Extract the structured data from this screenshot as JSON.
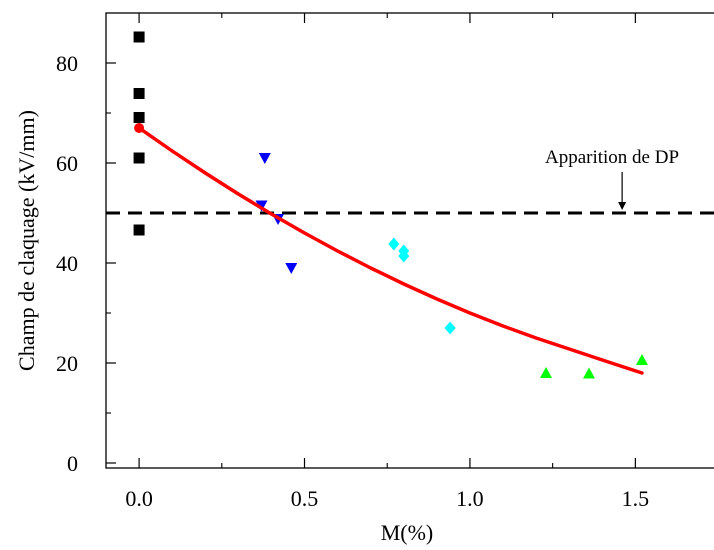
{
  "chart_data": {
    "type": "scatter",
    "title": "",
    "xlabel": "M(%)",
    "ylabel": "Champ de claquage (kV/mm)",
    "xlim": [
      -0.1,
      1.78
    ],
    "ylim": [
      -1,
      90
    ],
    "x_ticks": [
      0.0,
      0.5,
      1.0,
      1.5
    ],
    "x_tick_labels": [
      "0.0",
      "0.5",
      "1.0",
      "1.5"
    ],
    "y_ticks": [
      0,
      20,
      40,
      60,
      80
    ],
    "y_tick_labels": [
      "0",
      "20",
      "40",
      "60",
      "80"
    ],
    "grid": false,
    "legend": "none",
    "series": [
      {
        "marker": "square",
        "color": "#000000",
        "points": [
          [
            0,
            85.2
          ],
          [
            0,
            73.9
          ],
          [
            0,
            69.1
          ],
          [
            0,
            61.0
          ],
          [
            0,
            46.6
          ]
        ]
      },
      {
        "marker": "triangle-down",
        "color": "#0000ff",
        "points": [
          [
            0.38,
            61.0
          ],
          [
            0.37,
            51.5
          ],
          [
            0.42,
            48.8
          ],
          [
            0.46,
            39.0
          ]
        ]
      },
      {
        "marker": "diamond",
        "color": "#00ffff",
        "points": [
          [
            0.77,
            43.8
          ],
          [
            0.8,
            42.4
          ],
          [
            0.8,
            41.4
          ],
          [
            0.94,
            27.0
          ]
        ]
      },
      {
        "marker": "triangle-up",
        "color": "#00ff00",
        "points": [
          [
            1.23,
            18.0
          ],
          [
            1.36,
            17.9
          ],
          [
            1.52,
            20.6
          ]
        ]
      }
    ],
    "fit_curve": {
      "color": "#ff0000",
      "x": [
        0,
        0.1,
        0.2,
        0.3,
        0.4,
        0.5,
        0.6,
        0.7,
        0.8,
        0.9,
        1.0,
        1.1,
        1.2,
        1.3,
        1.4,
        1.52
      ],
      "y": [
        67.0,
        62.4,
        58.0,
        53.8,
        49.8,
        46.0,
        42.4,
        39.0,
        35.8,
        32.8,
        30.0,
        27.4,
        25.0,
        22.8,
        20.6,
        18.0
      ]
    },
    "reference_line": {
      "y": 50,
      "style": "dashed",
      "color": "#000000"
    },
    "annotation": {
      "text": "Apparition de DP",
      "arrow_x": 1.46
    }
  }
}
